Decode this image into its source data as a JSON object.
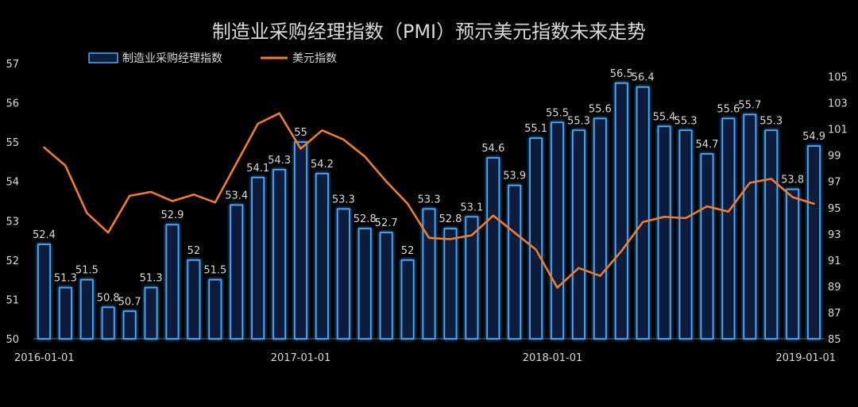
{
  "colors": {
    "background": "#000000",
    "text": "#d9d9d9",
    "bar_stroke": "#4aa8ff",
    "bar_fill": "#0a1f3a",
    "bar_glow": "#1f6dff",
    "line": "#f07c2c",
    "axis": "#6a6a6a"
  },
  "chart_data": {
    "type": "bar",
    "title": "制造业采购经理指数（PMI）预示美元指数未来走势",
    "legend_position": "top-left",
    "legend": {
      "bar_label": "制造业采购经理指数",
      "line_label": "美元指数"
    },
    "x_tick_labels": [
      "2016-01-01",
      "2017-01-01",
      "2018-01-01",
      "2019-01-01"
    ],
    "y_left": {
      "min": 50,
      "max": 57,
      "ticks": [
        "50",
        "51",
        "52",
        "53",
        "54",
        "55",
        "56",
        "57"
      ]
    },
    "y_right": {
      "min": 85,
      "max": 106,
      "ticks": [
        "85",
        "87",
        "89",
        "91",
        "93",
        "95",
        "97",
        "99",
        "101",
        "103",
        "105"
      ]
    },
    "grid": false,
    "series": [
      {
        "name": "制造业采购经理指数",
        "type": "bar",
        "axis": "left",
        "values": [
          52.4,
          51.3,
          51.5,
          50.8,
          50.7,
          51.3,
          52.9,
          52,
          51.5,
          53.4,
          54.1,
          54.3,
          55,
          54.2,
          53.3,
          52.8,
          52.7,
          52,
          53.3,
          52.8,
          53.1,
          54.6,
          53.9,
          55.1,
          55.5,
          55.3,
          55.6,
          56.5,
          56.4,
          55.4,
          55.3,
          54.7,
          55.6,
          55.7,
          55.3,
          53.8,
          54.9
        ],
        "labels": [
          "52.4",
          "51.3",
          "51.5",
          "50.8",
          "50.7",
          "51.3",
          "52.9",
          "52",
          "51.5",
          "53.4",
          "54.1",
          "54.3",
          "55",
          "54.2",
          "53.3",
          "52.8",
          "52.7",
          "52",
          "53.3",
          "52.8",
          "53.1",
          "54.6",
          "53.9",
          "55.1",
          "55.5",
          "55.3",
          "55.6",
          "56.5",
          "56.4",
          "55.4",
          "55.3",
          "54.7",
          "55.6",
          "55.7",
          "55.3",
          "53.8",
          "54.9"
        ]
      },
      {
        "name": "美元指数",
        "type": "line",
        "axis": "right",
        "values": [
          99.6,
          98.2,
          94.6,
          93.1,
          95.9,
          96.2,
          95.5,
          96.0,
          95.4,
          98.4,
          101.4,
          102.2,
          99.5,
          100.9,
          100.2,
          98.9,
          97.0,
          95.3,
          92.7,
          92.6,
          92.9,
          94.4,
          93.1,
          91.8,
          88.9,
          90.4,
          89.8,
          91.7,
          93.9,
          94.3,
          94.2,
          95.1,
          94.7,
          96.9,
          97.2,
          95.8,
          95.3
        ]
      }
    ]
  }
}
